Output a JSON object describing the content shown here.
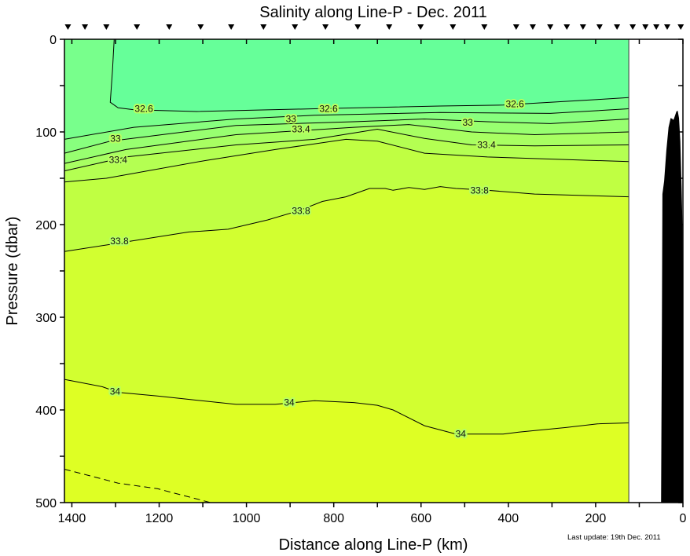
{
  "chart_data": {
    "type": "contour",
    "title": "Salinity along Line-P - Dec. 2011",
    "xlabel": "Distance along Line-P (km)",
    "ylabel": "Pressure (dbar)",
    "xlim": [
      1417,
      0
    ],
    "ylim": [
      0,
      500
    ],
    "x_reversed": true,
    "y_reversed": true,
    "x_ticks": [
      1400,
      1200,
      1000,
      800,
      600,
      400,
      200,
      0
    ],
    "y_ticks": [
      0,
      100,
      200,
      300,
      400,
      500
    ],
    "data_extent_km": [
      1417,
      124
    ],
    "note": "Last update: 19th Dec. 2011",
    "stations_km": [
      1409,
      1370,
      1321,
      1251,
      1177,
      1105,
      1035,
      961,
      889,
      819,
      745,
      673,
      601,
      527,
      455,
      382,
      344,
      304,
      266,
      229,
      191,
      151,
      115,
      86,
      61,
      36,
      5
    ],
    "colors": {
      "background_fill": "#66FF99",
      "bands": [
        "#78FF8C",
        "#88FF7E",
        "#98FF70",
        "#A8FF62",
        "#B4FF52",
        "#C0FF42",
        "#D2FF30",
        "#DEFF24"
      ],
      "bathymetry": "#000000",
      "contour_line": "#000000"
    },
    "contours": [
      {
        "level": 32.6,
        "style": "solid",
        "points": [
          [
            1303,
            0
          ],
          [
            1307,
            34
          ],
          [
            1312,
            68
          ],
          [
            1294,
            74
          ],
          [
            1258,
            76
          ],
          [
            1114,
            78
          ],
          [
            844,
            75
          ],
          [
            556,
            72
          ],
          [
            412,
            71
          ],
          [
            304,
            68
          ],
          [
            196,
            65
          ],
          [
            124,
            63
          ]
        ]
      },
      {
        "level": 32.8,
        "style": "solid",
        "points": [
          [
            1417,
            108
          ],
          [
            1258,
            95
          ],
          [
            1024,
            86
          ],
          [
            844,
            82
          ],
          [
            556,
            79
          ],
          [
            304,
            80
          ],
          [
            124,
            75
          ]
        ]
      },
      {
        "level": 33.0,
        "style": "solid",
        "points": [
          [
            1417,
            123
          ],
          [
            1312,
            110
          ],
          [
            1024,
            93
          ],
          [
            754,
            89
          ],
          [
            592,
            86
          ],
          [
            448,
            89
          ],
          [
            304,
            91
          ],
          [
            124,
            86
          ]
        ]
      },
      {
        "level": 33.2,
        "style": "solid",
        "points": [
          [
            1417,
            134
          ],
          [
            1276,
            119
          ],
          [
            1024,
            103
          ],
          [
            754,
            95
          ],
          [
            628,
            92
          ],
          [
            484,
            100
          ],
          [
            340,
            103
          ],
          [
            124,
            100
          ]
        ]
      },
      {
        "level": 33.4,
        "style": "solid",
        "points": [
          [
            1417,
            142
          ],
          [
            1276,
            127
          ],
          [
            1024,
            114
          ],
          [
            844,
            108
          ],
          [
            700,
            97
          ],
          [
            592,
            107
          ],
          [
            484,
            114
          ],
          [
            340,
            115
          ],
          [
            124,
            114
          ]
        ]
      },
      {
        "level": 33.6,
        "style": "solid",
        "points": [
          [
            1417,
            154
          ],
          [
            1321,
            150
          ],
          [
            1096,
            131
          ],
          [
            934,
            119
          ],
          [
            772,
            108
          ],
          [
            700,
            110
          ],
          [
            592,
            123
          ],
          [
            448,
            127
          ],
          [
            124,
            132
          ]
        ]
      },
      {
        "level": 33.8,
        "style": "solid",
        "points": [
          [
            1417,
            229
          ],
          [
            1321,
            222
          ],
          [
            1240,
            216
          ],
          [
            1132,
            208
          ],
          [
            1042,
            205
          ],
          [
            952,
            195
          ],
          [
            880,
            185
          ],
          [
            826,
            175
          ],
          [
            772,
            170
          ],
          [
            718,
            161
          ],
          [
            682,
            161
          ],
          [
            664,
            163
          ],
          [
            628,
            160
          ],
          [
            592,
            162
          ],
          [
            556,
            159
          ],
          [
            520,
            161
          ],
          [
            448,
            163
          ],
          [
            340,
            167
          ],
          [
            124,
            170
          ]
        ]
      },
      {
        "level": 34.0,
        "style": "solid",
        "points": [
          [
            1417,
            367
          ],
          [
            1330,
            375
          ],
          [
            1294,
            381
          ],
          [
            1204,
            385
          ],
          [
            1024,
            394
          ],
          [
            934,
            394
          ],
          [
            844,
            390
          ],
          [
            754,
            392
          ],
          [
            700,
            395
          ],
          [
            664,
            400
          ],
          [
            592,
            417
          ],
          [
            520,
            426
          ],
          [
            412,
            426
          ],
          [
            376,
            424
          ],
          [
            268,
            419
          ],
          [
            196,
            415
          ],
          [
            124,
            414
          ]
        ]
      },
      {
        "level": 34.2,
        "style": "dashed",
        "points": [
          [
            1417,
            464
          ],
          [
            1294,
            479
          ],
          [
            1204,
            485
          ],
          [
            1082,
            500
          ]
        ]
      }
    ],
    "contour_labels": [
      {
        "text": "32.6",
        "km": 1235,
        "dbar": 75
      },
      {
        "text": "32.6",
        "km": 812,
        "dbar": 75
      },
      {
        "text": "32.6",
        "km": 385,
        "dbar": 70
      },
      {
        "text": "33",
        "km": 1300,
        "dbar": 107
      },
      {
        "text": "33",
        "km": 898,
        "dbar": 86
      },
      {
        "text": "33",
        "km": 493,
        "dbar": 90
      },
      {
        "text": "33.4",
        "km": 1294,
        "dbar": 130
      },
      {
        "text": "33.4",
        "km": 875,
        "dbar": 97
      },
      {
        "text": "33.4",
        "km": 450,
        "dbar": 114
      },
      {
        "text": "33.8",
        "km": 1291,
        "dbar": 218
      },
      {
        "text": "33.8",
        "km": 875,
        "dbar": 185
      },
      {
        "text": "33.8",
        "km": 466,
        "dbar": 163
      },
      {
        "text": "34",
        "km": 1301,
        "dbar": 380
      },
      {
        "text": "34",
        "km": 902,
        "dbar": 392
      },
      {
        "text": "34",
        "km": 509,
        "dbar": 426
      }
    ],
    "bathymetry": [
      [
        50,
        500
      ],
      [
        48,
        300
      ],
      [
        47,
        167
      ],
      [
        43,
        153
      ],
      [
        38,
        120
      ],
      [
        33,
        95
      ],
      [
        28,
        85
      ],
      [
        24,
        86
      ],
      [
        22,
        87
      ],
      [
        20,
        85
      ],
      [
        15,
        78
      ],
      [
        12,
        77
      ],
      [
        9,
        85
      ],
      [
        6,
        110
      ],
      [
        3,
        160
      ],
      [
        1,
        200
      ],
      [
        0,
        500
      ]
    ]
  }
}
